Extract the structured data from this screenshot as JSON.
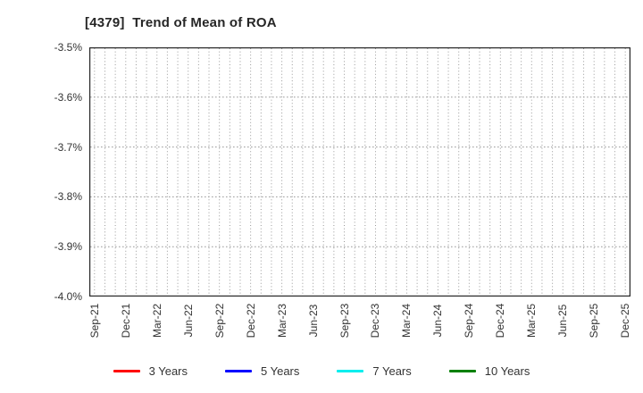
{
  "title": "[4379]  Trend of Mean of ROA",
  "chart_data": {
    "type": "line",
    "title": "[4379]  Trend of Mean of ROA",
    "x_tick_labels": [
      "Sep-21",
      "Dec-21",
      "Mar-22",
      "Jun-22",
      "Sep-22",
      "Dec-22",
      "Mar-23",
      "Jun-23",
      "Sep-23",
      "Dec-23",
      "Mar-24",
      "Jun-24",
      "Sep-24",
      "Dec-24",
      "Mar-25",
      "Jun-25",
      "Sep-25",
      "Dec-25"
    ],
    "minor_gridlines": "monthly",
    "months_total": 52,
    "y_tick_labels": [
      "-3.5%",
      "-3.6%",
      "-3.7%",
      "-3.8%",
      "-3.9%",
      "-4.0%"
    ],
    "ylim": [
      -4.0,
      -3.5
    ],
    "xlabel": "",
    "ylabel": "",
    "grid": "dotted",
    "legend_position": "bottom",
    "series": [
      {
        "name": "3 Years",
        "color": "#ff0000",
        "values": []
      },
      {
        "name": "5 Years",
        "color": "#0000ff",
        "values": []
      },
      {
        "name": "7 Years",
        "color": "#00eeee",
        "values": []
      },
      {
        "name": "10 Years",
        "color": "#008000",
        "values": []
      }
    ],
    "colors": {
      "axis_border": "#262626",
      "grid": "#999999",
      "tick_text": "#333333",
      "title_text": "#262626",
      "background": "#ffffff"
    }
  }
}
